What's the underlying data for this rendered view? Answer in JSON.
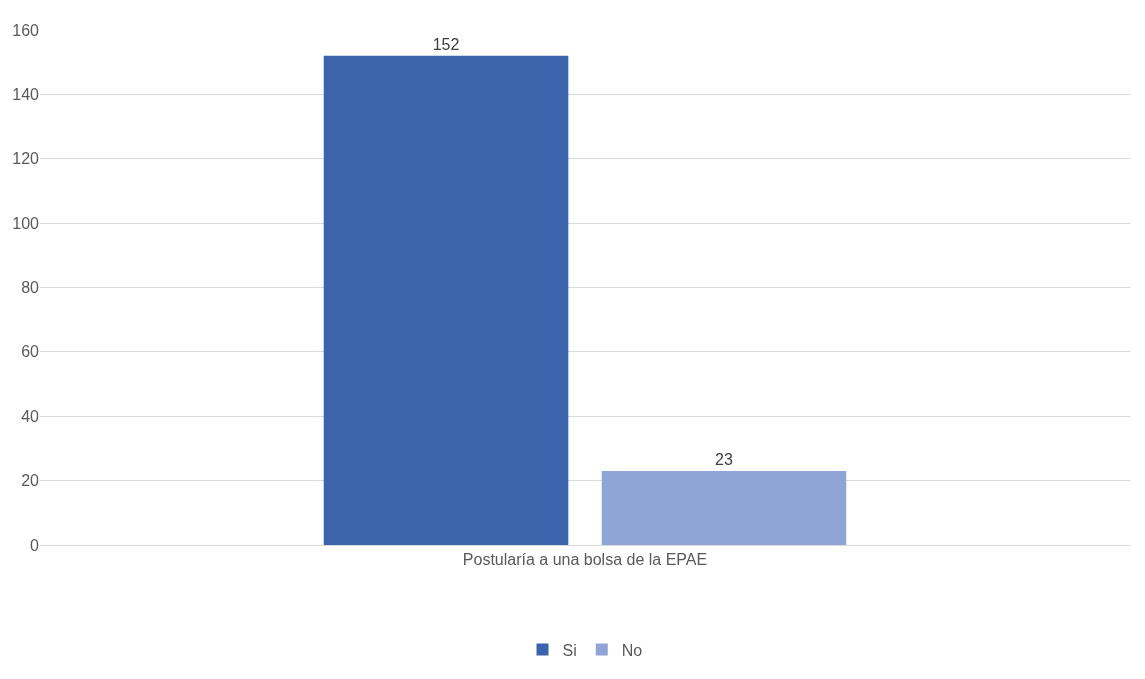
{
  "chart_data": {
    "type": "bar",
    "categories": [
      "Postularía a una bolsa de la EPAE"
    ],
    "series": [
      {
        "name": "Si",
        "color": "#3b64ad",
        "values": [
          152
        ]
      },
      {
        "name": "No",
        "color": "#8fa5d6",
        "values": [
          23
        ]
      }
    ],
    "ylim": [
      0,
      160
    ],
    "yticks": [
      0,
      20,
      40,
      60,
      80,
      100,
      120,
      140,
      160
    ],
    "grid": "y",
    "legend": "bottom",
    "data_labels": true
  }
}
